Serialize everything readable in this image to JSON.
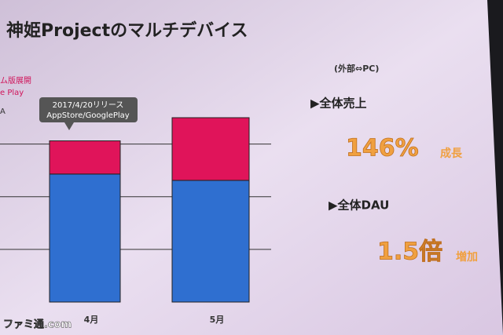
{
  "header": {
    "title": "神姫Projectのマルチデバイス",
    "subtitle": "(外部⇔PC)"
  },
  "legend_fragments": [
    "ム版展開",
    "e Play",
    "A"
  ],
  "callout": [
    "2017/4/20リリース",
    "AppStore/GooglePlay"
  ],
  "stats": [
    {
      "label": "▶全体売上",
      "value": "146%",
      "suffix": "成長"
    },
    {
      "label": "▶全体DAU",
      "value": "1.5倍",
      "suffix": "増加"
    }
  ],
  "watermark": "ファミ通.com",
  "chart_data": {
    "type": "bar",
    "stacked": true,
    "categories": [
      "4月",
      "5月"
    ],
    "series": [
      {
        "color": "#2f6fd0",
        "values": [
          2.43,
          2.31
        ]
      },
      {
        "color": "#e0145a",
        "values": [
          0.63,
          1.19
        ]
      }
    ],
    "ylim": [
      0,
      3.5
    ],
    "gridlines": [
      1,
      2,
      3
    ],
    "grid": true
  }
}
